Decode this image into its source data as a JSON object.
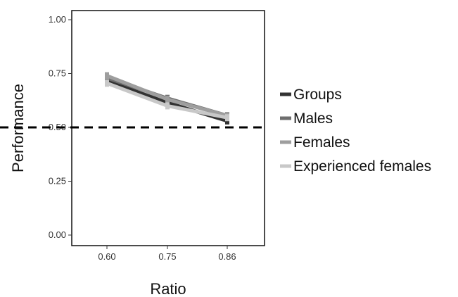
{
  "chart_data": {
    "type": "line",
    "title": "",
    "xlabel": "Ratio",
    "ylabel": "Performance",
    "categories": [
      "0.60",
      "0.75",
      "0.86"
    ],
    "ylim": [
      0,
      1.0
    ],
    "y_ticks": [
      "0.00",
      "0.25",
      "0.50",
      "0.75",
      "1.00"
    ],
    "y_tick_values": [
      0,
      0.25,
      0.5,
      0.75,
      1.0
    ],
    "reference_line": {
      "y": 0.5,
      "style": "dashed"
    },
    "grid": false,
    "legend_position": "right",
    "series": [
      {
        "name": "Groups",
        "color": "#333333",
        "values": [
          0.715,
          0.615,
          0.53
        ]
      },
      {
        "name": "Males",
        "color": "#6e6e6e",
        "values": [
          0.73,
          0.635,
          0.555
        ]
      },
      {
        "name": "Females",
        "color": "#9e9e9e",
        "values": [
          0.74,
          0.63,
          0.555
        ]
      },
      {
        "name": "Experienced females",
        "color": "#c8c8c8",
        "values": [
          0.705,
          0.6,
          0.545
        ]
      }
    ]
  }
}
